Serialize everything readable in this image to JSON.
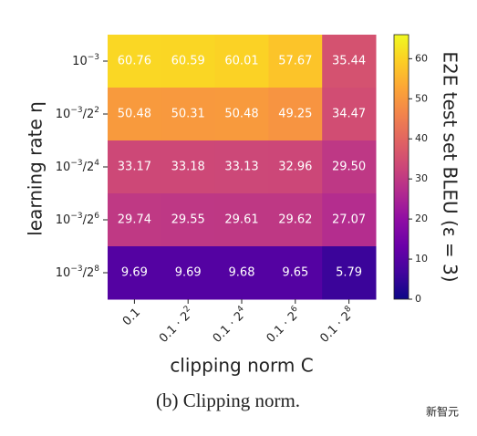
{
  "chart_data": {
    "type": "heatmap",
    "x_label": "clipping norm C",
    "y_label": "learning rate η",
    "colorbar_label": "E2E test set BLEU (ε = 3)",
    "caption": "(b) Clipping norm.",
    "watermark": "新智元",
    "cmap": "plasma",
    "x_categories": [
      [
        {
          "t": "0.1"
        }
      ],
      [
        {
          "t": "0.1 · 2"
        },
        {
          "t": "2",
          "sup": true
        }
      ],
      [
        {
          "t": "0.1 · 2"
        },
        {
          "t": "4",
          "sup": true
        }
      ],
      [
        {
          "t": "0.1 · 2"
        },
        {
          "t": "6",
          "sup": true
        }
      ],
      [
        {
          "t": "0.1 · 2"
        },
        {
          "t": "8",
          "sup": true
        }
      ]
    ],
    "y_categories": [
      [
        {
          "t": "10"
        },
        {
          "t": "−3",
          "sup": true
        }
      ],
      [
        {
          "t": "10"
        },
        {
          "t": "−3",
          "sup": true
        },
        {
          "t": "/2"
        },
        {
          "t": "2",
          "sup": true
        }
      ],
      [
        {
          "t": "10"
        },
        {
          "t": "−3",
          "sup": true
        },
        {
          "t": "/2"
        },
        {
          "t": "4",
          "sup": true
        }
      ],
      [
        {
          "t": "10"
        },
        {
          "t": "−3",
          "sup": true
        },
        {
          "t": "/2"
        },
        {
          "t": "6",
          "sup": true
        }
      ],
      [
        {
          "t": "10"
        },
        {
          "t": "−3",
          "sup": true
        },
        {
          "t": "/2"
        },
        {
          "t": "8",
          "sup": true
        }
      ]
    ],
    "values": [
      [
        60.76,
        60.59,
        60.01,
        57.67,
        35.44
      ],
      [
        50.48,
        50.31,
        50.48,
        49.25,
        34.47
      ],
      [
        33.17,
        33.18,
        33.13,
        32.96,
        29.5
      ],
      [
        29.74,
        29.55,
        29.61,
        29.62,
        27.07
      ],
      [
        9.69,
        9.69,
        9.68,
        9.65,
        5.79
      ]
    ],
    "value_labels": [
      [
        "60.76",
        "60.59",
        "60.01",
        "57.67",
        "35.44"
      ],
      [
        "50.48",
        "50.31",
        "50.48",
        "49.25",
        "34.47"
      ],
      [
        "33.17",
        "33.18",
        "33.13",
        "32.96",
        "29.50"
      ],
      [
        "29.74",
        "29.55",
        "29.61",
        "29.62",
        "27.07"
      ],
      [
        "9.69",
        "9.69",
        "9.68",
        "9.65",
        "5.79"
      ]
    ],
    "clim": [
      0,
      66
    ],
    "cticks": [
      0,
      10,
      20,
      30,
      40,
      50,
      60
    ]
  }
}
